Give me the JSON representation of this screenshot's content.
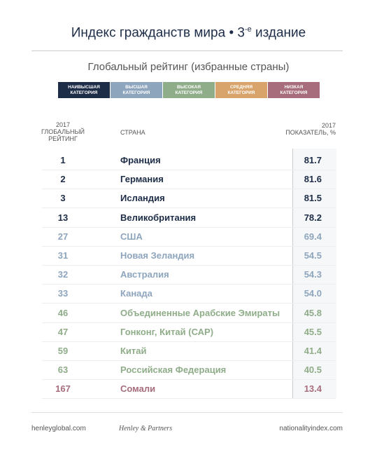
{
  "header": {
    "title_parts": [
      "Индекс гражданств мира • 3",
      "-е",
      " издание"
    ],
    "subtitle": "Глобальный рейтинг (избранные страны)"
  },
  "legend": [
    {
      "lines": [
        "НАИВЫСШАЯ",
        "КАТЕГОРИЯ"
      ],
      "color": "#1d2c47"
    },
    {
      "lines": [
        "ВЫСШАЯ",
        "КАТЕГОРИЯ"
      ],
      "color": "#8ea5be"
    },
    {
      "lines": [
        "ВЫСОКАЯ",
        "КАТЕГОРИЯ"
      ],
      "color": "#8fad89"
    },
    {
      "lines": [
        "СРЕДНЯЯ",
        "КАТЕГОРИЯ"
      ],
      "color": "#d9a46b"
    },
    {
      "lines": [
        "НИЗКАЯ",
        "КАТЕГОРИЯ"
      ],
      "color": "#a76d7c"
    }
  ],
  "table": {
    "columns": [
      [
        "2017",
        "ГЛОБАЛЬНЫЙ",
        "РЕЙТИНГ"
      ],
      [
        "СТРАНА"
      ],
      [
        "2017",
        "ПОКАЗАТЕЛЬ, %"
      ]
    ],
    "rows": [
      {
        "cells": [
          "1",
          "Франция",
          "81.7"
        ],
        "color": "#1d2c47"
      },
      {
        "cells": [
          "2",
          "Германия",
          "81.6"
        ],
        "color": "#1d2c47"
      },
      {
        "cells": [
          "3",
          "Исландия",
          "81.5"
        ],
        "color": "#1d2c47"
      },
      {
        "cells": [
          "13",
          "Великобритания",
          "78.2"
        ],
        "color": "#1d2c47"
      },
      {
        "cells": [
          "27",
          "США",
          "69.4"
        ],
        "color": "#8ea5be"
      },
      {
        "cells": [
          "31",
          "Новая Зеландия",
          "54.5"
        ],
        "color": "#8ea5be"
      },
      {
        "cells": [
          "32",
          "Австралия",
          "54.3"
        ],
        "color": "#8ea5be"
      },
      {
        "cells": [
          "33",
          "Канада",
          "54.0"
        ],
        "color": "#8ea5be"
      },
      {
        "cells": [
          "46",
          "Объединенные Арабские Эмираты",
          "45.8"
        ],
        "color": "#8fad89"
      },
      {
        "cells": [
          "47",
          "Гонконг, Китай (САР)",
          "45.5"
        ],
        "color": "#8fad89"
      },
      {
        "cells": [
          "59",
          "Китай",
          "41.4"
        ],
        "color": "#8fad89"
      },
      {
        "cells": [
          "63",
          "Российская Федерация",
          "40.5"
        ],
        "color": "#8fad89"
      },
      {
        "cells": [
          "167",
          "Сомали",
          "13.4"
        ],
        "color": "#a76d7c"
      }
    ]
  },
  "footer": {
    "left": "henleyglobal.com",
    "logo": "Henley & Partners",
    "right": "nationalityindex.com"
  }
}
